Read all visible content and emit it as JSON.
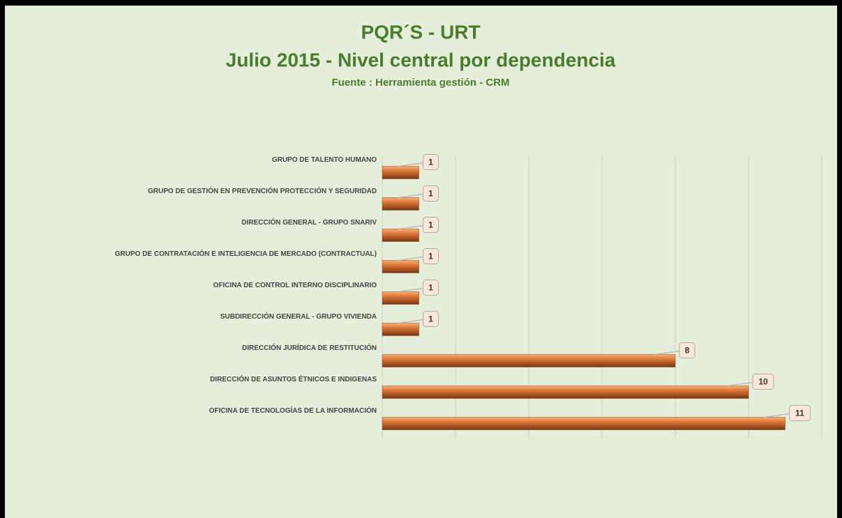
{
  "chart_data": {
    "type": "barh",
    "title": "PQR´S - URT",
    "subtitle": "Julio 2015 - Nivel central por dependencia",
    "source": "Fuente : Herramienta gestión - CRM",
    "categories": [
      "GRUPO DE TALENTO HUMANO",
      "GRUPO DE GESTIÓN EN PREVENCIÓN PROTECCIÓN Y SEGURIDAD",
      "DIRECCIÓN GENERAL - GRUPO SNARIV",
      "GRUPO DE CONTRATACIÓN E INTELIGENCIA DE MERCADO (CONTRACTUAL)",
      "OFICINA DE CONTROL INTERNO DISCIPLINARIO",
      "SUBDIRECCIÓN GENERAL - GRUPO VIVIENDA",
      "DIRECCIÓN JURÍDICA DE RESTITUCIÓN",
      "DIRECCIÓN DE ASUNTOS ÉTNICOS E INDIGENAS",
      "OFICINA DE TECNOLOGÍAS DE LA INFORMACIÓN"
    ],
    "values": [
      1,
      1,
      1,
      1,
      1,
      1,
      8,
      10,
      11
    ],
    "color": "#c0602a",
    "xlim": [
      0,
      12
    ],
    "xticks": [
      0,
      2,
      4,
      6,
      8,
      10,
      12
    ],
    "grid": true
  }
}
